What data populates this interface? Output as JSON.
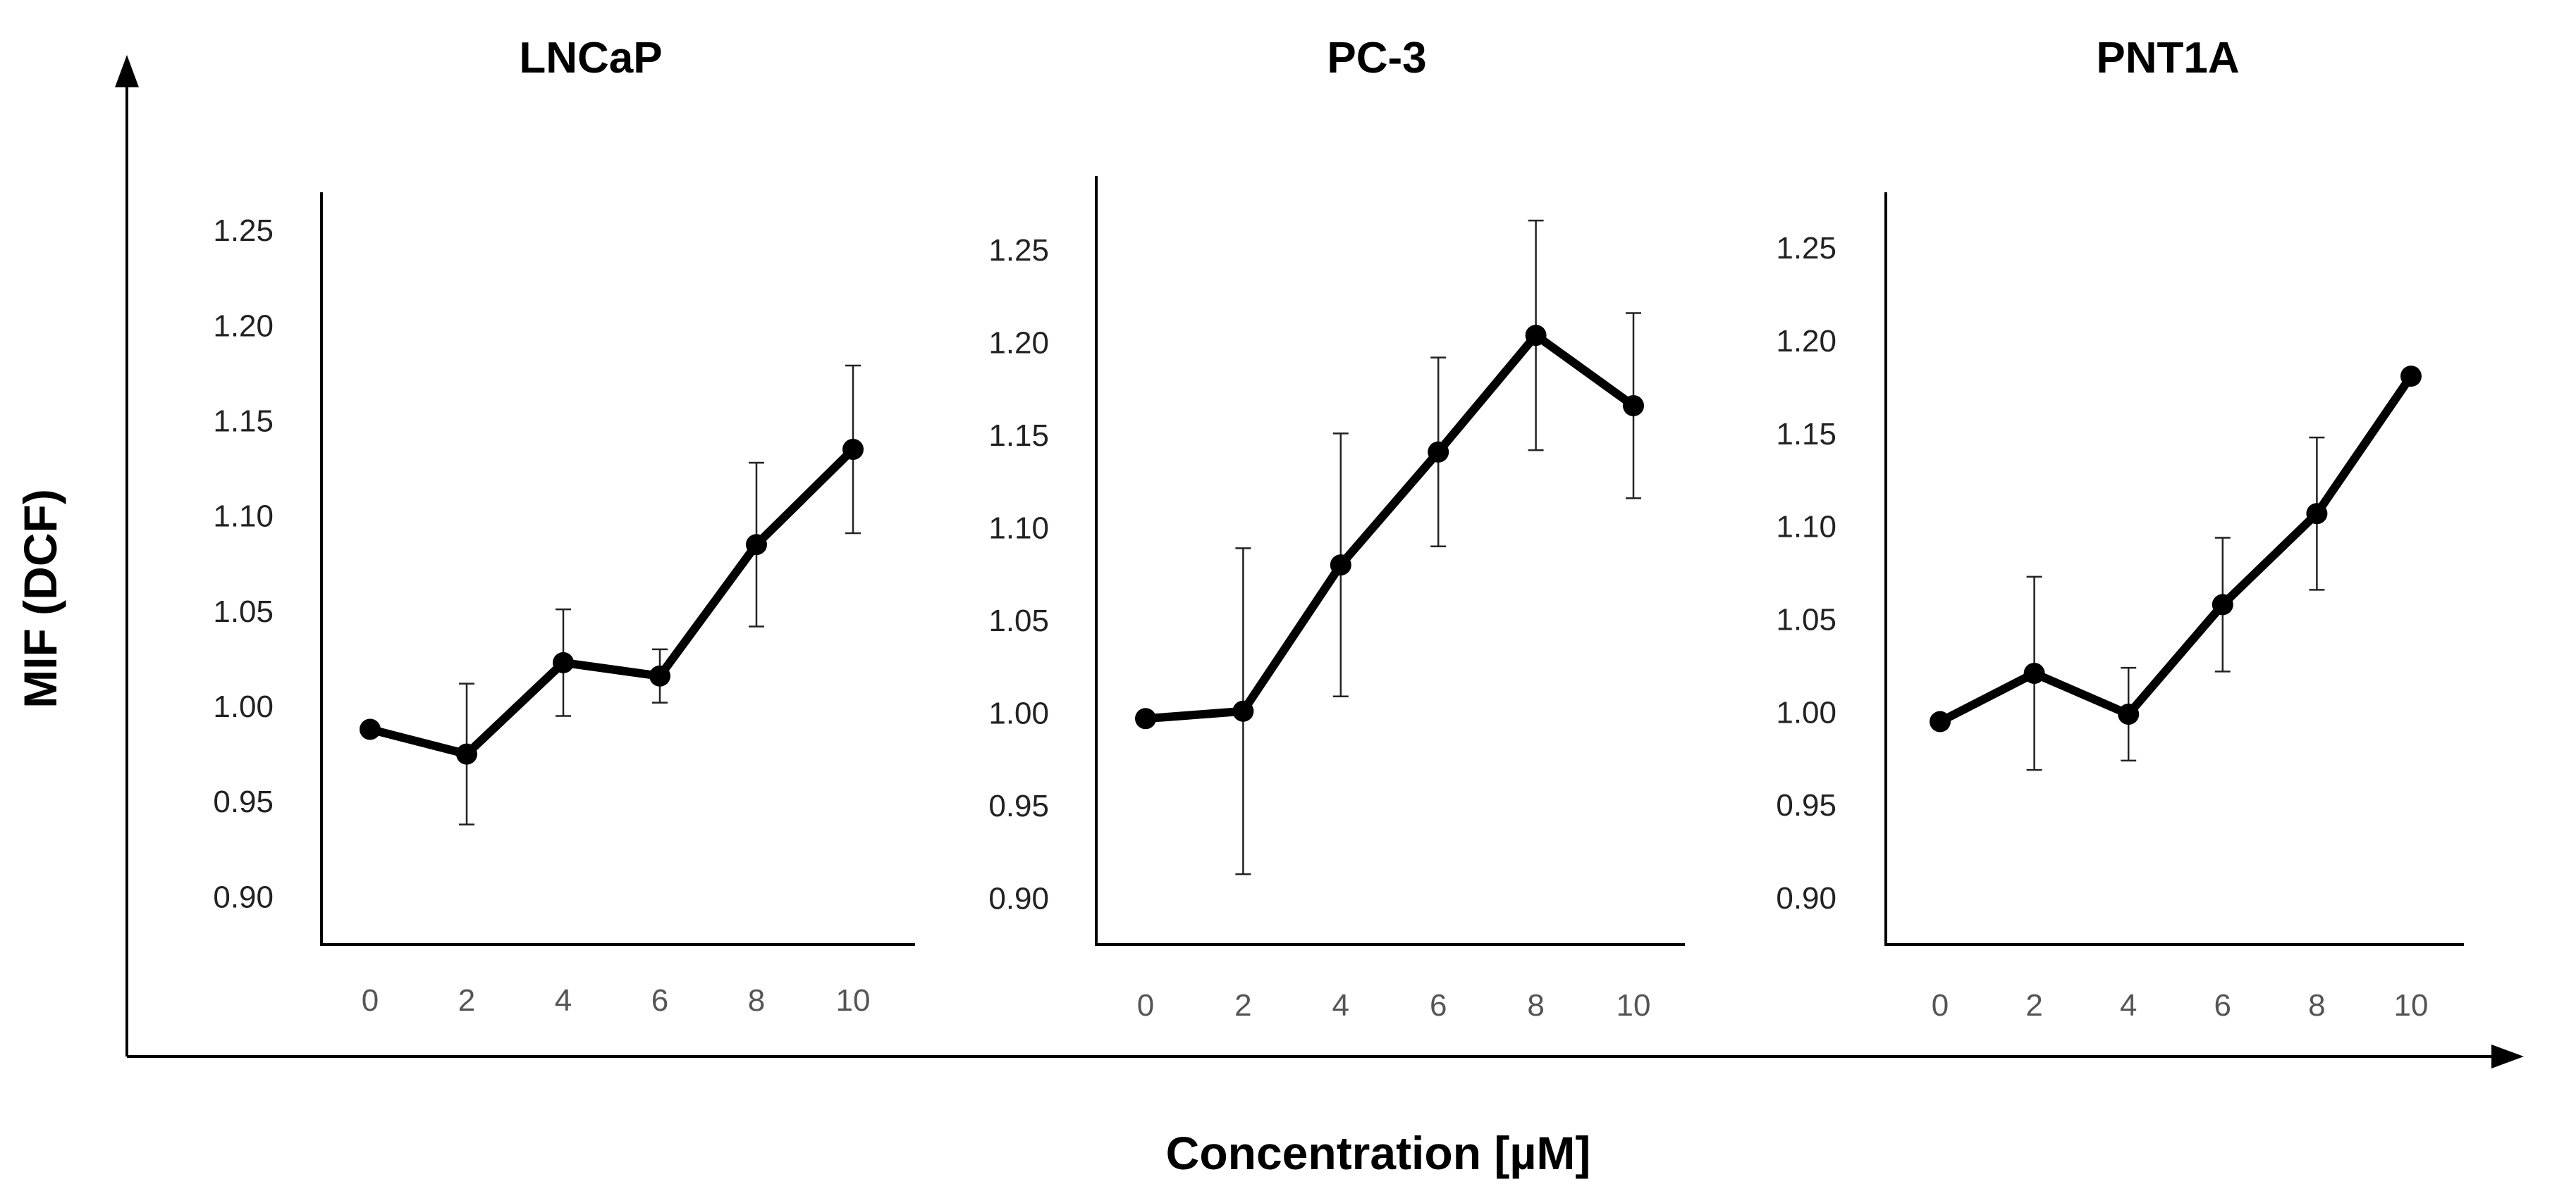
{
  "chart_data": {
    "type": "line",
    "xlabel": "Concentration [µM]",
    "ylabel": "MIF (DCF)",
    "panels": [
      {
        "title": "LNCaP",
        "x": [
          0,
          2,
          4,
          6,
          8,
          10
        ],
        "x_tick_labels": [
          "0",
          "2",
          "4",
          "6",
          "8",
          "10"
        ],
        "y_tick_labels": [
          "0.90",
          "0.95",
          "1.00",
          "1.05",
          "1.10",
          "1.15",
          "1.20",
          "1.25"
        ],
        "ylim": [
          0.875,
          1.27
        ],
        "values": [
          0.988,
          0.975,
          1.023,
          1.016,
          1.085,
          1.135
        ],
        "error": [
          0,
          0.037,
          0.028,
          0.014,
          0.043,
          0.044
        ]
      },
      {
        "title": "PC-3",
        "x": [
          0,
          2,
          4,
          6,
          8,
          10
        ],
        "x_tick_labels": [
          "0",
          "2",
          "4",
          "6",
          "8",
          "10"
        ],
        "y_tick_labels": [
          "0.90",
          "0.95",
          "1.00",
          "1.05",
          "1.10",
          "1.15",
          "1.20",
          "1.25"
        ],
        "ylim": [
          0.875,
          1.29
        ],
        "values": [
          0.997,
          1.001,
          1.08,
          1.141,
          1.204,
          1.166
        ],
        "error": [
          0,
          0.088,
          0.071,
          0.051,
          0.062,
          0.05
        ]
      },
      {
        "title": "PNT1A",
        "x": [
          0,
          2,
          4,
          6,
          8,
          10
        ],
        "x_tick_labels": [
          "0",
          "2",
          "4",
          "6",
          "8",
          "10"
        ],
        "y_tick_labels": [
          "0.90",
          "0.95",
          "1.00",
          "1.05",
          "1.10",
          "1.15",
          "1.20",
          "1.25"
        ],
        "ylim": [
          0.875,
          1.28
        ],
        "values": [
          0.995,
          1.021,
          0.999,
          1.058,
          1.107,
          1.181
        ],
        "error": [
          0,
          0.052,
          0.025,
          0.036,
          0.041,
          0
        ]
      }
    ]
  }
}
